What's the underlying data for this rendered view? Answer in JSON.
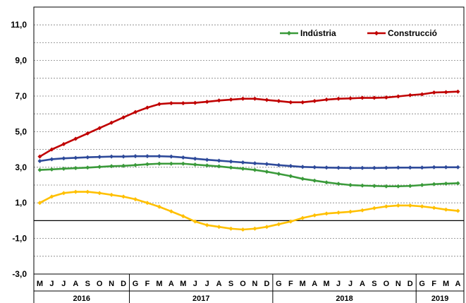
{
  "chart_data": {
    "type": "line",
    "title": "",
    "xlabel": "",
    "ylabel": "",
    "ylim": [
      -3,
      12
    ],
    "yticks": [
      -3,
      -1,
      1,
      3,
      5,
      7,
      9,
      11
    ],
    "ytick_labels": [
      "-3,0",
      "-1,0",
      "1,0",
      "3,0",
      "5,0",
      "7,0",
      "9,0",
      "11,0"
    ],
    "grid": true,
    "legend_position": "top-right",
    "zero_line": true,
    "x": [
      "M",
      "J",
      "J",
      "A",
      "S",
      "O",
      "N",
      "D",
      "G",
      "F",
      "M",
      "A",
      "M",
      "J",
      "J",
      "A",
      "S",
      "O",
      "N",
      "D",
      "G",
      "F",
      "M",
      "A",
      "M",
      "J",
      "J",
      "A",
      "S",
      "O",
      "N",
      "D",
      "G",
      "F",
      "M",
      "A"
    ],
    "year_groups": [
      {
        "label": "2016",
        "start": 0,
        "count": 8
      },
      {
        "label": "2017",
        "start": 8,
        "count": 12
      },
      {
        "label": "2018",
        "start": 20,
        "count": 12
      },
      {
        "label": "2019",
        "start": 32,
        "count": 4
      }
    ],
    "series": [
      {
        "name": "Construcció",
        "color": "#c00000",
        "in_legend": true,
        "values": [
          3.6,
          4.0,
          4.3,
          4.6,
          4.9,
          5.2,
          5.5,
          5.8,
          6.1,
          6.35,
          6.55,
          6.6,
          6.6,
          6.62,
          6.68,
          6.75,
          6.8,
          6.85,
          6.85,
          6.78,
          6.72,
          6.65,
          6.65,
          6.72,
          6.8,
          6.85,
          6.87,
          6.9,
          6.9,
          6.92,
          6.98,
          7.05,
          7.1,
          7.2,
          7.22,
          7.25
        ]
      },
      {
        "name": "Indústria",
        "color": "#3a9a3a",
        "in_legend": true,
        "values": [
          2.85,
          2.88,
          2.92,
          2.95,
          2.98,
          3.02,
          3.06,
          3.08,
          3.12,
          3.17,
          3.2,
          3.2,
          3.2,
          3.15,
          3.1,
          3.05,
          2.98,
          2.92,
          2.85,
          2.75,
          2.63,
          2.5,
          2.35,
          2.25,
          2.15,
          2.07,
          2.0,
          1.97,
          1.95,
          1.93,
          1.93,
          1.95,
          2.0,
          2.05,
          2.08,
          2.1
        ]
      },
      {
        "name": "",
        "color": "#2e4a9a",
        "in_legend": false,
        "values": [
          3.35,
          3.45,
          3.5,
          3.53,
          3.56,
          3.58,
          3.6,
          3.6,
          3.62,
          3.62,
          3.62,
          3.6,
          3.55,
          3.48,
          3.42,
          3.37,
          3.32,
          3.27,
          3.22,
          3.18,
          3.12,
          3.07,
          3.02,
          3.0,
          2.98,
          2.97,
          2.96,
          2.96,
          2.96,
          2.97,
          2.98,
          2.98,
          2.98,
          3.0,
          3.0,
          3.0
        ]
      },
      {
        "name": "",
        "color": "#ffc000",
        "in_legend": false,
        "values": [
          1.0,
          1.35,
          1.55,
          1.62,
          1.62,
          1.55,
          1.45,
          1.35,
          1.2,
          1.0,
          0.78,
          0.52,
          0.25,
          -0.05,
          -0.25,
          -0.35,
          -0.45,
          -0.5,
          -0.45,
          -0.35,
          -0.2,
          -0.05,
          0.15,
          0.3,
          0.4,
          0.45,
          0.5,
          0.58,
          0.7,
          0.8,
          0.85,
          0.85,
          0.8,
          0.72,
          0.62,
          0.55
        ]
      }
    ]
  }
}
